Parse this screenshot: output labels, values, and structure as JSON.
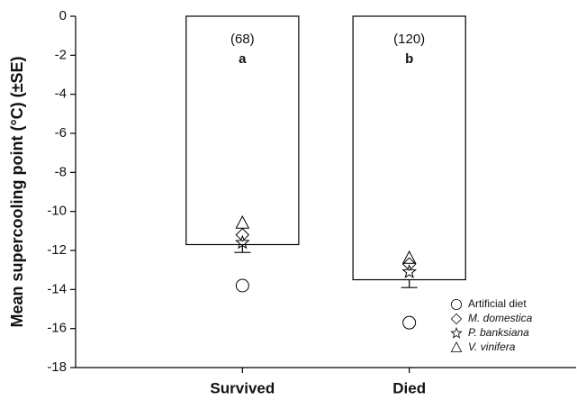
{
  "chart_data": {
    "type": "bar",
    "ylabel": "Mean supercooling point (°C) (±SE)",
    "categories": [
      "Survived",
      "Died"
    ],
    "values": [
      -11.7,
      -13.5
    ],
    "errors": [
      0.4,
      0.4
    ],
    "color": "#ffffff",
    "annotations": [
      [
        "(68)",
        "a"
      ],
      [
        "(120)",
        "b"
      ]
    ],
    "series": [
      {
        "name": "Artificial diet",
        "marker": "circle",
        "values": [
          -13.8,
          -15.7
        ]
      },
      {
        "name": "M. domestica",
        "marker": "diamond",
        "italic": true,
        "values": [
          -11.2,
          -12.7
        ]
      },
      {
        "name": "P. banksiana",
        "marker": "star",
        "italic": true,
        "values": [
          -11.6,
          -13.1
        ]
      },
      {
        "name": "V. vinifera",
        "marker": "triangle",
        "italic": true,
        "values": [
          -10.6,
          -12.4
        ]
      }
    ],
    "ylim": [
      -18,
      0
    ],
    "yticks": [
      0,
      -2,
      -4,
      -6,
      -8,
      -10,
      -12,
      -14,
      -16,
      -18
    ],
    "legend": "lower right"
  }
}
